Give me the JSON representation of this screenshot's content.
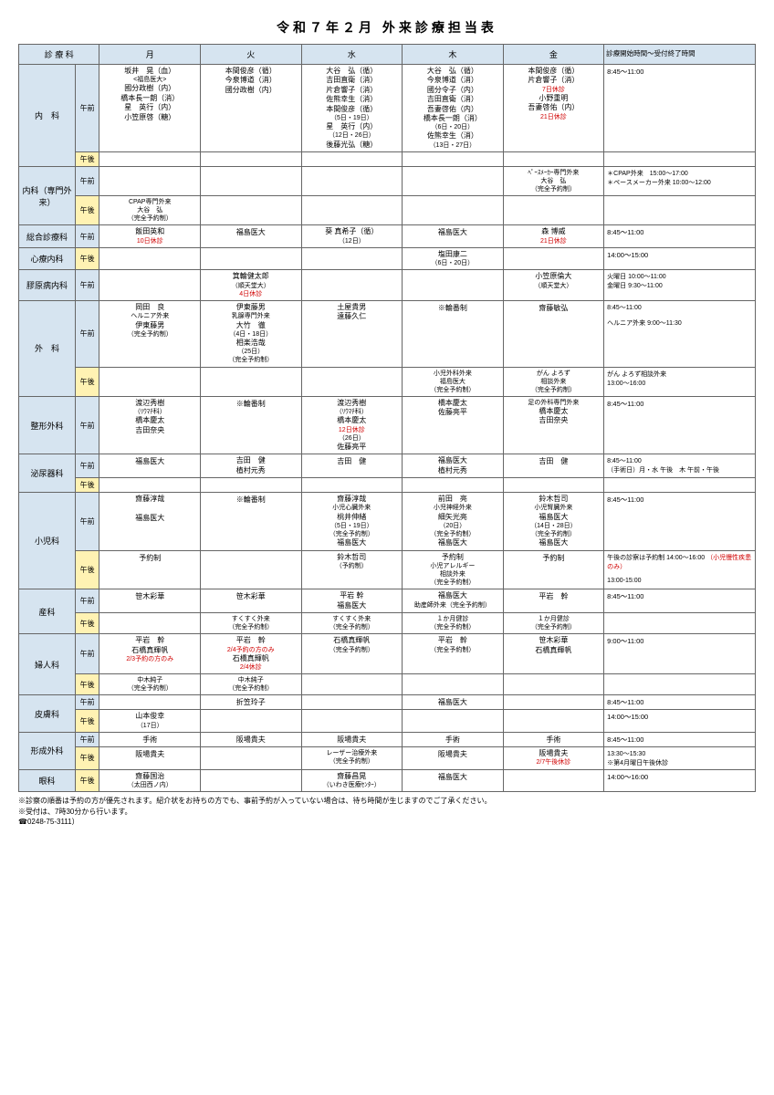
{
  "title": "令和７年２月 外来診療担当表",
  "headers": {
    "dept": "診 療 科",
    "session": "",
    "mon": "月",
    "tue": "火",
    "wed": "水",
    "thu": "木",
    "fri": "金",
    "note": "診療開始時間～受付終了時間"
  },
  "colors": {
    "header_bg": "#d6e4f0",
    "am_bg": "#d6e4f0",
    "pm_bg": "#fff2b3",
    "border": "#666666",
    "red": "#d00000"
  },
  "sess": {
    "am": "午前",
    "pm": "午後"
  },
  "rows": {
    "naika": {
      "dept": "内　科",
      "mon": [
        "坂井　晃（血）",
        "<福島医大>",
        "國分政樹（内）",
        "橋本長一朗（消）",
        "星　英行（内）",
        "小笠原啓（糖）"
      ],
      "tue": [
        "本間俊彦（循）",
        "今泉博道（消）",
        "國分政樹（内）"
      ],
      "wed": [
        "大谷　弘（循）",
        "吉田直衛（消）",
        "片倉響子（消）",
        "佐熊幸生（消）",
        "本間俊彦（循）",
        "（5日・19日）",
        "星　英行（内）",
        "（12日・26日）",
        "後藤光弘（糖）"
      ],
      "thu": [
        "大谷　弘（循）",
        "今泉博道（消）",
        "國分令子（内）",
        "吉田直衛（消）",
        "吾妻啓佑（内）",
        "橋本長一朗（消）",
        "（6日・20日）",
        "佐熊幸生（消）",
        "（13日・27日）"
      ],
      "fri": [
        "本間俊彦（循）",
        "片倉響子（消）",
        "",
        "小野重明",
        "吾妻啓佑（内）",
        ""
      ],
      "fri_red": [
        "",
        "",
        "7日休診",
        "",
        "",
        "21日休診"
      ],
      "note": "8:45～11:00"
    },
    "naika_senmon": {
      "dept": "内科（専門外来）",
      "am_fri": [
        "ﾍﾟｰｽﾒｰｶｰ専門外来",
        "大谷　弘",
        "（完全予約制）"
      ],
      "am_note": [
        "＊CPAP外来　15:00～17:00",
        "＊ペースメーカー外来 10:00～12:00"
      ],
      "pm_mon": [
        "CPAP専門外来",
        "大谷　弘",
        "（完全予約制）"
      ]
    },
    "sogo": {
      "dept": "総合診療科",
      "mon": [
        "飯田英和",
        ""
      ],
      "mon_red": "10日休診",
      "tue": "福島医大",
      "wed": [
        "葵 真希子（循）",
        "（12日）"
      ],
      "thu": "福島医大",
      "fri": [
        "森 博威",
        ""
      ],
      "fri_red": "21日休診",
      "note": "8:45～11:00"
    },
    "shinryo": {
      "dept": "心療内科",
      "thu": [
        "塩田康二",
        "（6日・20日）"
      ],
      "note": "14:00～15:00"
    },
    "kogen": {
      "dept": "膠原病内科",
      "tue": [
        "箕輪健太郎",
        "（順天堂大）",
        ""
      ],
      "tue_red": "4日休診",
      "fri": [
        "小笠原倫大",
        "（順天堂大）"
      ],
      "note": [
        "火曜日 10:00～11:00",
        "金曜日  9:30～11:00"
      ]
    },
    "geka": {
      "dept": "外　科",
      "am": {
        "mon": [
          "岡田　良",
          "ヘルニア外来",
          "伊東藤男",
          "（完全予約制）"
        ],
        "tue": [
          "伊東藤男",
          "乳腺専門外来",
          "大竹　徹",
          "（4日・18日）",
          "相楽浩哉",
          "（25日）",
          "（完全予約制）"
        ],
        "wed": [
          "土屋貴男",
          "遠藤久仁"
        ],
        "thu": [
          "※輪番制"
        ],
        "fri": [
          "齋藤敏弘"
        ],
        "note": [
          "8:45～11:00",
          "",
          "ヘルニア外来 9:00～11:30"
        ]
      },
      "pm": {
        "thu": [
          "小児外科外来",
          "福島医大",
          "（完全予約制）"
        ],
        "fri": [
          "がん よろず",
          "相談外来",
          "（完全予約制）"
        ],
        "note": [
          "がん よろず相談外来",
          "13:00～16:00"
        ]
      }
    },
    "seikei": {
      "dept": "整形外科",
      "mon": [
        "渡辺秀樹",
        "（ﾘｳﾏﾁ科）",
        "橋本慶太",
        "吉田奈央"
      ],
      "tue": [
        "※輪番制"
      ],
      "wed": [
        "渡辺秀樹",
        "（ﾘｳﾏﾁ科）",
        "橋本慶太",
        "",
        "（26日）",
        "佐藤亮平"
      ],
      "wed_red": "12日休診",
      "thu": [
        "橋本慶太",
        "佐藤亮平"
      ],
      "fri": [
        "足の外科専門外来",
        "橋本慶太",
        "吉田奈央"
      ],
      "note": "8:45～11:00"
    },
    "hinyoki": {
      "dept": "泌尿器科",
      "am": {
        "mon": "福島医大",
        "tue": [
          "吉田　健",
          "植村元秀"
        ],
        "wed": "吉田　健",
        "thu": [
          "福島医大",
          "植村元秀"
        ],
        "fri": "吉田　健",
        "note": [
          "8:45～11:00",
          "（手術日）月・水 午後　木 午前・午後"
        ]
      }
    },
    "shonika": {
      "dept": "小児科",
      "am": {
        "mon": [
          "齋藤淳哉",
          "福島医大"
        ],
        "tue": [
          "※輪番制"
        ],
        "wed": [
          "齋藤淳哉",
          "小児心臓外来",
          "桃井伸緒",
          "（5日・19日）",
          "（完全予約制）",
          "福島医大"
        ],
        "thu": [
          "前田　亮",
          "小児神経外来",
          "細矢光亮",
          "（20日）",
          "（完全予約制）",
          "福島医大"
        ],
        "fri": [
          "鈴木哲司",
          "小児腎臓外来",
          "福島医大",
          "（14日・28日）",
          "（完全予約制）",
          "福島医大"
        ],
        "note": "8:45～11:00"
      },
      "pm": {
        "mon": "予約制",
        "wed": [
          "鈴木哲司",
          "（予約制）"
        ],
        "thu": [
          "予約制",
          "小児アレルギー",
          "相談外来",
          "（完全予約制）"
        ],
        "fri": "予約制",
        "note": [
          "午後の診察は予約制 14:00～16:00",
          "",
          "",
          "13:00-15:00"
        ],
        "note_red": "（小児慢性疾患のみ）"
      }
    },
    "sanka": {
      "dept": "産科",
      "am": {
        "mon": "笹木彩華",
        "tue": "笹木彩華",
        "wed": [
          "平岩 幹",
          "福島医大"
        ],
        "thu": [
          "福島医大",
          "助産師外来（完全予約制）"
        ],
        "fri": "平岩　幹",
        "note": "8:45～11:00"
      },
      "pm": {
        "tue": [
          "すくすく外来",
          "（完全予約制）"
        ],
        "wed": [
          "すくすく外来",
          "（完全予約制）"
        ],
        "thu": [
          "１か月健診",
          "（完全予約制）"
        ],
        "fri": [
          "１か月健診",
          "（完全予約制）"
        ]
      }
    },
    "fujinka": {
      "dept": "婦人科",
      "am": {
        "mon": [
          "平岩　幹",
          "石橋真輝帆",
          ""
        ],
        "mon_red": "2/3予約の方のみ",
        "tue": [
          "平岩　幹",
          "",
          "石橋真輝帆",
          ""
        ],
        "tue_red": [
          "2/4予約の方のみ",
          "2/4休診"
        ],
        "wed": [
          "石橋真輝帆",
          "（完全予約制）"
        ],
        "thu": [
          "平岩　幹",
          "（完全予約制）"
        ],
        "fri": [
          "笹木彩華",
          "石橋真輝帆"
        ],
        "note": " 9:00～11:00"
      },
      "pm": {
        "mon": [
          "中木純子",
          "（完全予約制）"
        ],
        "tue": [
          "中木純子",
          "（完全予約制）"
        ]
      }
    },
    "hifuka": {
      "dept": "皮膚科",
      "am": {
        "tue": "折笠玲子",
        "thu": "福島医大",
        "note": "8:45～11:00"
      },
      "pm": {
        "mon": [
          "山本俊幸",
          "（17日）"
        ],
        "note": "14:00～15:00"
      }
    },
    "keisei": {
      "dept": "形成外科",
      "am": {
        "mon": "手術",
        "tue": "阪場貴夫",
        "wed": "阪場貴夫",
        "thu": "手術",
        "fri": "手術",
        "note": "8:45～11:00"
      },
      "pm": {
        "mon": "阪場貴夫",
        "wed": [
          "レーザー治療外来",
          "（完全予約制）"
        ],
        "thu": "阪場貴夫",
        "fri": [
          "阪場貴夫",
          ""
        ],
        "fri_red": "2/7午後休診",
        "note": [
          "13:30～15:30",
          "※第4月曜日午後休診"
        ]
      }
    },
    "ganka": {
      "dept": "眼科",
      "mon": [
        "齋藤国治",
        "（太田西ノ内）"
      ],
      "wed": [
        "齋藤昌晃",
        "（いわき医療ｾﾝﾀｰ）"
      ],
      "thu": "福島医大",
      "note": "14:00～16:00"
    }
  },
  "footer": {
    "l1": "※診察の順番は予約の方が優先されます。紹介状をお持ちの方でも、事前予約が入っていない場合は、待ち時間が生じますのでご了承ください。",
    "l2": "※受付は、7時30分から行います。",
    "tel": "☎0248-75-3111）"
  }
}
